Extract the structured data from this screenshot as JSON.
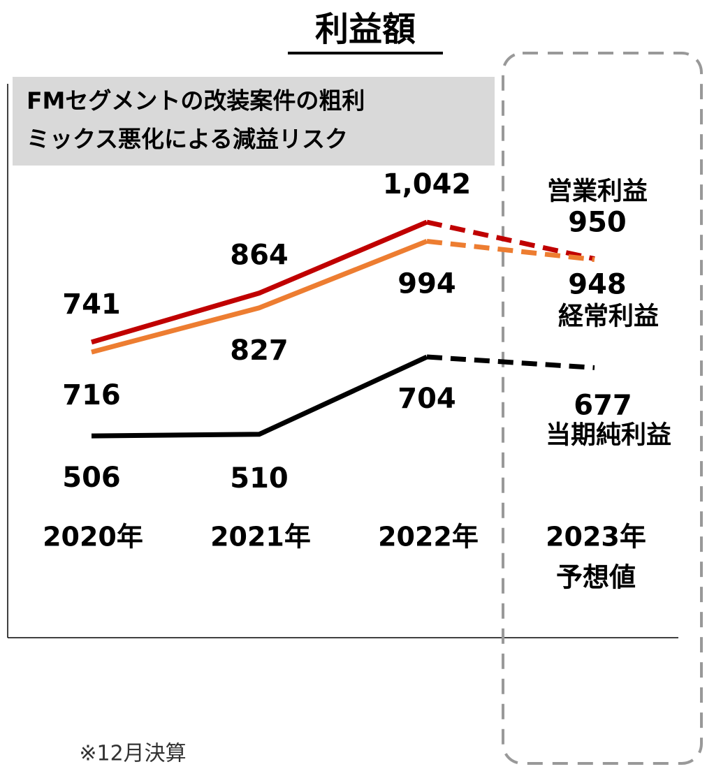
{
  "chart_data": {
    "type": "line",
    "title": "利益額",
    "annotation": [
      "FMセグメントの改装案件の粗利",
      "ミックス悪化による減益リスク"
    ],
    "categories": [
      "2020年",
      "2021年",
      "2022年",
      "2023年"
    ],
    "forecast_label": "予想値",
    "forecast_index": 3,
    "series": [
      {
        "name": "営業利益",
        "color": "#c00000",
        "values": [
          741,
          864,
          1042,
          950
        ],
        "value_labels": [
          "741",
          "864",
          "1,042",
          "950"
        ]
      },
      {
        "name": "経常利益",
        "color": "#ed7d31",
        "values": [
          716,
          827,
          994,
          948
        ]
      },
      {
        "name": "当期純利益",
        "color": "#000000",
        "values": [
          506,
          510,
          704,
          677
        ]
      }
    ],
    "ylim": [
      0,
      1400
    ],
    "note": "※12月決算"
  }
}
